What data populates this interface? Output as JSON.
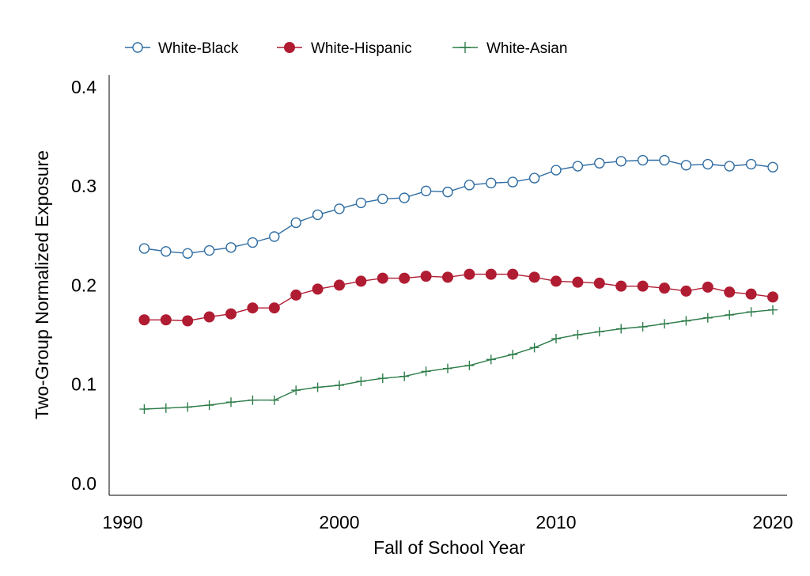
{
  "chart_data": {
    "type": "line",
    "title": "",
    "xlabel": "Fall of School Year",
    "ylabel": "Two-Group Normalized Exposure",
    "xlim": [
      1988.5,
      2020.5
    ],
    "ylim": [
      0.0,
      0.41
    ],
    "x_ticks": [
      {
        "value": 1990,
        "label": "1990"
      },
      {
        "value": 2000,
        "label": "2000"
      },
      {
        "value": 2010,
        "label": "2010"
      },
      {
        "value": 2020,
        "label": "2020"
      }
    ],
    "y_ticks": [
      {
        "value": 0.0,
        "label": "0.0"
      },
      {
        "value": 0.1,
        "label": "0.1"
      },
      {
        "value": 0.2,
        "label": "0.2"
      },
      {
        "value": 0.3,
        "label": "0.3"
      },
      {
        "value": 0.4,
        "label": "0.4"
      }
    ],
    "grid": false,
    "legend_position": "top",
    "x": [
      1991,
      1992,
      1993,
      1994,
      1995,
      1996,
      1997,
      1998,
      1999,
      2000,
      2001,
      2002,
      2003,
      2004,
      2005,
      2006,
      2007,
      2008,
      2009,
      2010,
      2011,
      2012,
      2013,
      2014,
      2015,
      2016,
      2017,
      2018,
      2019,
      2020
    ],
    "series": [
      {
        "name": "White-Black",
        "color": "#2f6da3",
        "marker": "hollow-circle",
        "values": [
          0.237,
          0.234,
          0.232,
          0.235,
          0.238,
          0.243,
          0.249,
          0.263,
          0.271,
          0.277,
          0.283,
          0.287,
          0.288,
          0.295,
          0.294,
          0.301,
          0.303,
          0.304,
          0.308,
          0.316,
          0.32,
          0.323,
          0.325,
          0.326,
          0.326,
          0.321,
          0.322,
          0.32,
          0.322,
          0.319
        ]
      },
      {
        "name": "White-Hispanic",
        "color": "#b01c32",
        "marker": "filled-circle",
        "values": [
          0.165,
          0.165,
          0.164,
          0.168,
          0.171,
          0.177,
          0.177,
          0.19,
          0.196,
          0.2,
          0.204,
          0.207,
          0.207,
          0.209,
          0.208,
          0.211,
          0.211,
          0.211,
          0.208,
          0.204,
          0.203,
          0.202,
          0.199,
          0.199,
          0.197,
          0.194,
          0.198,
          0.193,
          0.191,
          0.188
        ]
      },
      {
        "name": "White-Asian",
        "color": "#2e7d4a",
        "marker": "plus",
        "values": [
          0.075,
          0.076,
          0.077,
          0.079,
          0.082,
          0.084,
          0.084,
          0.094,
          0.097,
          0.099,
          0.103,
          0.106,
          0.108,
          0.113,
          0.116,
          0.119,
          0.125,
          0.13,
          0.137,
          0.146,
          0.15,
          0.153,
          0.156,
          0.158,
          0.161,
          0.164,
          0.167,
          0.17,
          0.173,
          0.175
        ]
      }
    ]
  }
}
